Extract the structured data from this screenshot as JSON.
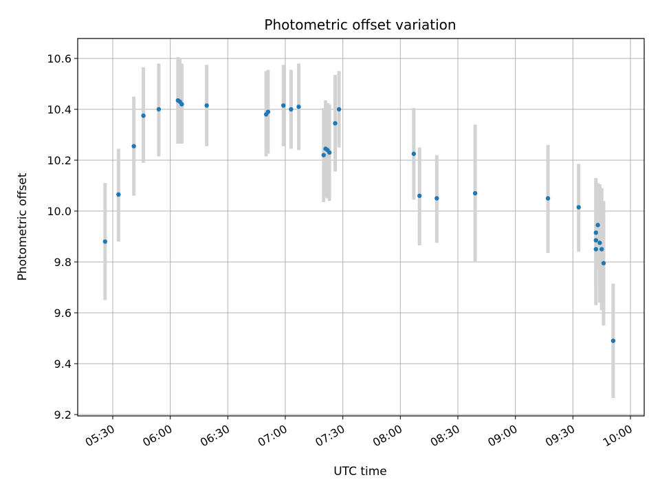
{
  "chart_data": {
    "type": "scatter",
    "title": "Photometric offset variation",
    "xlabel": "UTC time",
    "ylabel": "Photometric offset",
    "xlim": [
      "05:08",
      "10:00"
    ],
    "ylim": [
      9.195,
      10.675
    ],
    "x_ticks": [
      "05:30",
      "06:00",
      "06:30",
      "07:00",
      "07:30",
      "08:00",
      "08:30",
      "09:00",
      "09:30",
      "10:00"
    ],
    "y_ticks": [
      "9.2",
      "9.4",
      "9.6",
      "9.8",
      "10.0",
      "10.2",
      "10.4",
      "10.6"
    ],
    "grid": true,
    "colors": {
      "point": "#1f77b4",
      "errorbar": "#d3d3d3",
      "grid": "#b0b0b0"
    },
    "series": [
      {
        "points": [
          {
            "t": "05:26",
            "y": 9.88,
            "lo": 9.65,
            "hi": 10.11
          },
          {
            "t": "05:33",
            "y": 10.065,
            "lo": 9.88,
            "hi": 10.245
          },
          {
            "t": "05:41",
            "y": 10.255,
            "lo": 10.06,
            "hi": 10.45
          },
          {
            "t": "05:46",
            "y": 10.375,
            "lo": 10.19,
            "hi": 10.565
          },
          {
            "t": "05:54",
            "y": 10.4,
            "lo": 10.215,
            "hi": 10.58
          },
          {
            "t": "06:04",
            "y": 10.435,
            "lo": 10.265,
            "hi": 10.605
          },
          {
            "t": "06:05",
            "y": 10.43,
            "lo": 10.265,
            "hi": 10.6
          },
          {
            "t": "06:06",
            "y": 10.42,
            "lo": 10.265,
            "hi": 10.58
          },
          {
            "t": "06:19",
            "y": 10.415,
            "lo": 10.255,
            "hi": 10.575
          },
          {
            "t": "06:50",
            "y": 10.38,
            "lo": 10.215,
            "hi": 10.55
          },
          {
            "t": "06:51",
            "y": 10.39,
            "lo": 10.225,
            "hi": 10.555
          },
          {
            "t": "06:59",
            "y": 10.415,
            "lo": 10.255,
            "hi": 10.575
          },
          {
            "t": "07:03",
            "y": 10.4,
            "lo": 10.245,
            "hi": 10.555
          },
          {
            "t": "07:07",
            "y": 10.41,
            "lo": 10.24,
            "hi": 10.58
          },
          {
            "t": "07:20",
            "y": 10.22,
            "lo": 10.035,
            "hi": 10.405
          },
          {
            "t": "07:21",
            "y": 10.245,
            "lo": 10.055,
            "hi": 10.435
          },
          {
            "t": "07:22",
            "y": 10.24,
            "lo": 10.05,
            "hi": 10.425
          },
          {
            "t": "07:23",
            "y": 10.23,
            "lo": 10.04,
            "hi": 10.42
          },
          {
            "t": "07:26",
            "y": 10.345,
            "lo": 10.155,
            "hi": 10.535
          },
          {
            "t": "07:28",
            "y": 10.4,
            "lo": 10.25,
            "hi": 10.55
          },
          {
            "t": "08:07",
            "y": 10.225,
            "lo": 10.045,
            "hi": 10.405
          },
          {
            "t": "08:10",
            "y": 10.06,
            "lo": 9.865,
            "hi": 10.25
          },
          {
            "t": "08:19",
            "y": 10.05,
            "lo": 9.875,
            "hi": 10.22
          },
          {
            "t": "08:39",
            "y": 10.07,
            "lo": 9.8,
            "hi": 10.34
          },
          {
            "t": "09:17",
            "y": 10.05,
            "lo": 9.835,
            "hi": 10.26
          },
          {
            "t": "09:33",
            "y": 10.015,
            "lo": 9.84,
            "hi": 10.185
          },
          {
            "t": "09:42",
            "y": 9.915,
            "lo": 9.71,
            "hi": 10.13
          },
          {
            "t": "09:42",
            "y": 9.885,
            "lo": 9.63,
            "hi": 10.12
          },
          {
            "t": "09:42",
            "y": 9.85,
            "lo": 9.64,
            "hi": 10.06
          },
          {
            "t": "09:43",
            "y": 9.945,
            "lo": 9.77,
            "hi": 10.11
          },
          {
            "t": "09:44",
            "y": 9.875,
            "lo": 9.64,
            "hi": 10.105
          },
          {
            "t": "09:45",
            "y": 9.85,
            "lo": 9.61,
            "hi": 10.09
          },
          {
            "t": "09:46",
            "y": 9.795,
            "lo": 9.55,
            "hi": 10.04
          },
          {
            "t": "09:51",
            "y": 9.49,
            "lo": 9.265,
            "hi": 9.715
          }
        ]
      }
    ]
  }
}
